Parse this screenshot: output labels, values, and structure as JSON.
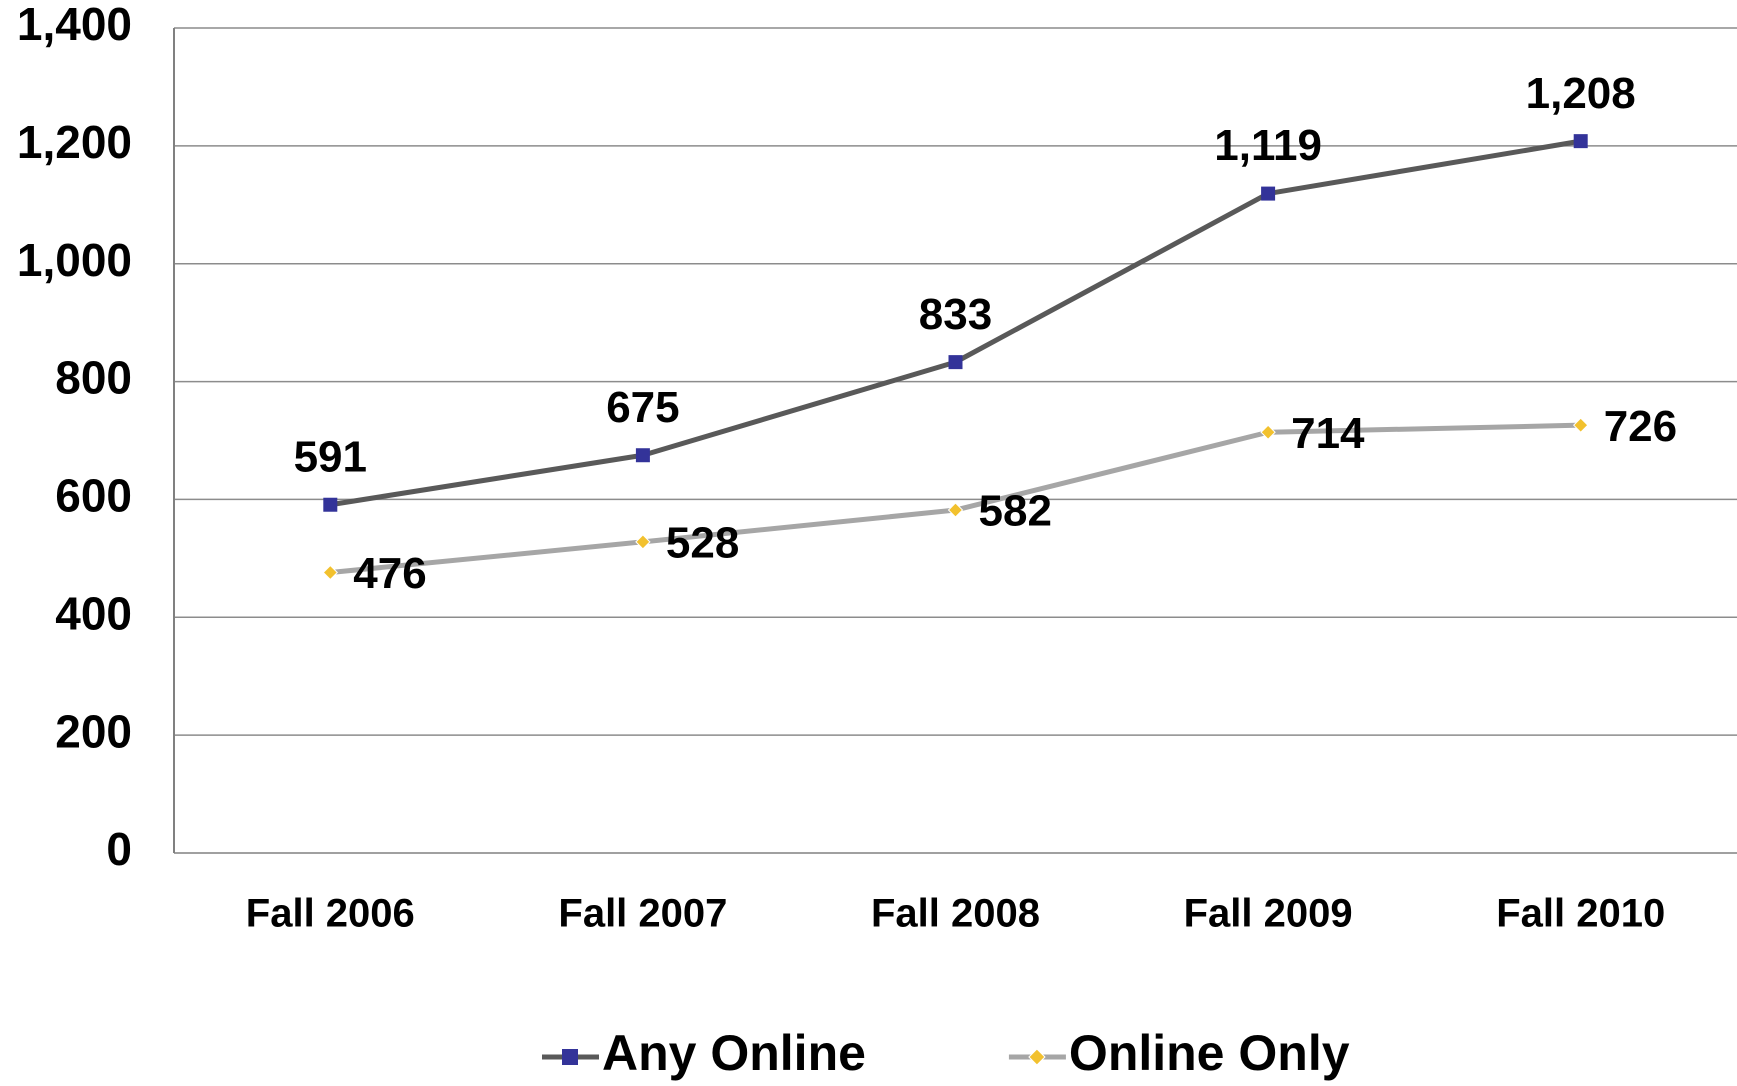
{
  "chart_data": {
    "type": "line",
    "categories": [
      "Fall 2006",
      "Fall 2007",
      "Fall 2008",
      "Fall 2009",
      "Fall 2010"
    ],
    "series": [
      {
        "name": "Any Online",
        "color": "#595959",
        "marker_color": "#333399",
        "marker": "square",
        "values": [
          591,
          675,
          833,
          1119,
          1208
        ],
        "value_labels": [
          "591",
          "675",
          "833",
          "1,119",
          "1,208"
        ]
      },
      {
        "name": "Online Only",
        "color": "#a6a6a6",
        "marker_color": "#f2c12e",
        "marker": "diamond",
        "values": [
          476,
          528,
          582,
          714,
          726
        ],
        "value_labels": [
          "476",
          "528",
          "582",
          "714",
          "726"
        ]
      }
    ],
    "ylim": [
      0,
      1400
    ],
    "yticks": [
      0,
      200,
      400,
      600,
      800,
      {
        "value": 1000,
        "label": "1,000"
      },
      {
        "value": 1200,
        "label": "1,200"
      },
      {
        "value": 1400,
        "label": "1,400"
      }
    ],
    "grid": true,
    "legend": "bottom"
  }
}
